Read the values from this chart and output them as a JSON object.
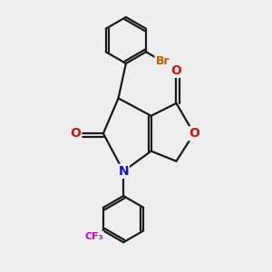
{
  "background_color": "#eeeeee",
  "bond_color": "#1a1a1a",
  "atom_colors": {
    "N": "#1414cc",
    "O": "#cc1414",
    "Br": "#b85a00",
    "F": "#cc00cc",
    "C": "#1a1a1a"
  },
  "figsize": [
    3.0,
    3.0
  ],
  "dpi": 100,
  "lw": 1.6
}
